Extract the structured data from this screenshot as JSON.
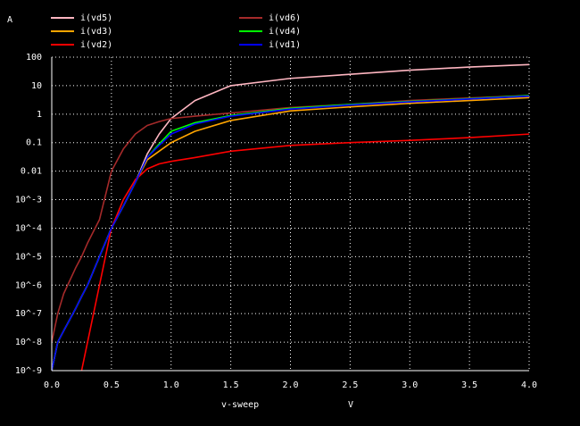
{
  "chart_data": {
    "type": "line",
    "y_label": "A",
    "x_label": "v-sweep",
    "x_unit": "V",
    "log_y": true,
    "grid": true,
    "x": [
      0,
      0.05,
      0.1,
      0.2,
      0.25,
      0.3,
      0.4,
      0.5,
      0.6,
      0.7,
      0.8,
      0.9,
      1.0,
      1.2,
      1.5,
      2,
      2.5,
      3,
      3.5,
      4
    ],
    "series": [
      {
        "name": "i(vd5)",
        "color": "#ffb6c1",
        "values": [
          1e-09,
          1e-08,
          2.5e-08,
          1.5e-07,
          4e-07,
          1e-06,
          1e-05,
          0.0001,
          0.0006,
          0.004,
          0.04,
          0.2,
          0.7,
          3,
          10,
          18,
          25,
          35,
          45,
          55
        ]
      },
      {
        "name": "i(vd6)",
        "color": "#a52a2a",
        "values": [
          1e-08,
          1e-07,
          5e-07,
          4e-06,
          1e-05,
          3e-05,
          0.0002,
          0.01,
          0.06,
          0.2,
          0.4,
          0.55,
          0.7,
          0.85,
          1.1,
          1.7,
          2.2,
          3,
          3.7,
          4.5
        ]
      },
      {
        "name": "i(vd3)",
        "color": "#ffa500",
        "values": [
          1e-09,
          1e-08,
          2.5e-08,
          1.5e-07,
          4e-07,
          1e-06,
          1e-05,
          0.0001,
          0.0006,
          0.004,
          0.025,
          0.05,
          0.1,
          0.25,
          0.6,
          1.3,
          1.8,
          2.4,
          3,
          3.8
        ]
      },
      {
        "name": "i(vd4)",
        "color": "#00ff00",
        "values": [
          1e-09,
          1e-08,
          2.5e-08,
          1.5e-07,
          4e-07,
          1e-06,
          1e-05,
          0.0001,
          0.0006,
          0.004,
          0.03,
          0.09,
          0.25,
          0.5,
          0.9,
          1.6,
          2.2,
          2.8,
          3.5,
          4.5
        ]
      },
      {
        "name": "i(vd2)",
        "color": "#ff0000",
        "values": [
          null,
          null,
          null,
          null,
          1e-09,
          1e-08,
          1e-06,
          0.0001,
          0.001,
          0.005,
          0.012,
          0.018,
          0.022,
          0.03,
          0.05,
          0.08,
          0.1,
          0.12,
          0.15,
          0.2
        ]
      },
      {
        "name": "i(vd1)",
        "color": "#0000ff",
        "values": [
          1e-09,
          1e-08,
          2.5e-08,
          1.5e-07,
          4e-07,
          1e-06,
          1e-05,
          0.0001,
          0.0006,
          0.004,
          0.03,
          0.08,
          0.2,
          0.45,
          0.85,
          1.5,
          2.1,
          2.7,
          3.4,
          4.3
        ]
      }
    ],
    "xlim": [
      0,
      4
    ],
    "xticks": [
      {
        "value": 0,
        "label": "0.0"
      },
      0.5,
      {
        "value": 1,
        "label": "1.0"
      },
      1.5,
      {
        "value": 2,
        "label": "2.0"
      },
      2.5,
      {
        "value": 3,
        "label": "3.0"
      },
      3.5,
      {
        "value": 4,
        "label": "4.0"
      }
    ],
    "ylim": [
      1e-09,
      100
    ],
    "yticks": [
      100,
      10,
      1,
      0.1,
      0.01,
      {
        "value": 0.001,
        "label": "10^-3"
      },
      {
        "value": 0.0001,
        "label": "10^-4"
      },
      {
        "value": 1e-05,
        "label": "10^-5"
      },
      {
        "value": 1e-06,
        "label": "10^-6"
      },
      {
        "value": 1e-07,
        "label": "10^-7"
      },
      {
        "value": 1e-08,
        "label": "10^-8"
      },
      {
        "value": 1e-09,
        "label": "10^-9"
      }
    ]
  }
}
